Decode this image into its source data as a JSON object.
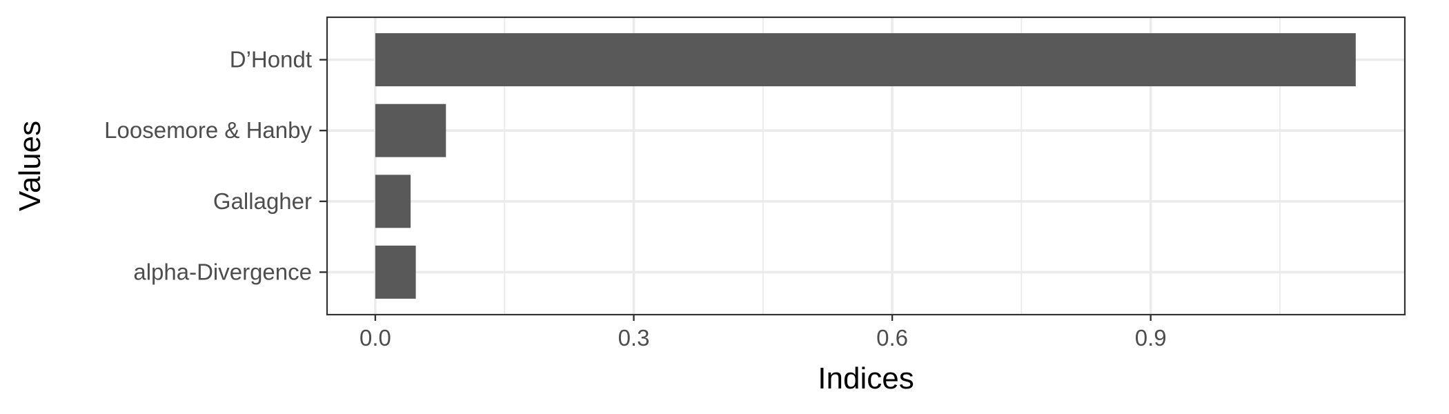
{
  "chart_data": {
    "type": "bar",
    "orientation": "horizontal",
    "categories": [
      "D’Hondt",
      "Loosemore & Hanby",
      "Gallagher",
      "alpha-Divergence"
    ],
    "values": [
      1.138,
      0.082,
      0.041,
      0.047
    ],
    "title": "",
    "xlabel": "Indices",
    "ylabel": "Values",
    "xlim": [
      -0.056,
      1.195
    ],
    "xticks": [
      "0.0",
      "0.3",
      "0.6",
      "0.9"
    ],
    "grid": true,
    "legend": "none",
    "colors": {
      "bar": "#595959",
      "grid": "#ebebeb",
      "panel_border": "#333333",
      "background": "#ffffff"
    }
  }
}
